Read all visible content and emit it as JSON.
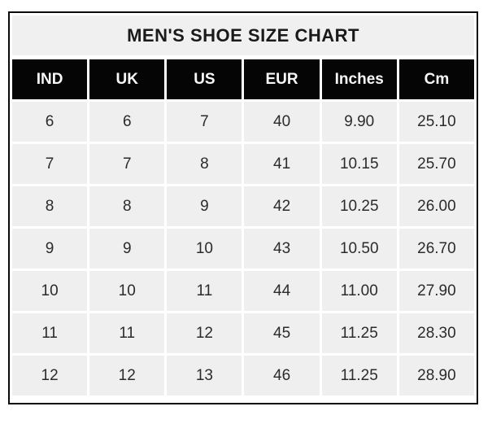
{
  "title": "MEN'S SHOE SIZE CHART",
  "table": {
    "columns": [
      "IND",
      "UK",
      "US",
      "EUR",
      "Inches",
      "Cm"
    ],
    "rows": [
      [
        "6",
        "6",
        "7",
        "40",
        "9.90",
        "25.10"
      ],
      [
        "7",
        "7",
        "8",
        "41",
        "10.15",
        "25.70"
      ],
      [
        "8",
        "8",
        "9",
        "42",
        "10.25",
        "26.00"
      ],
      [
        "9",
        "9",
        "10",
        "43",
        "10.50",
        "26.70"
      ],
      [
        "10",
        "10",
        "11",
        "44",
        "11.00",
        "27.90"
      ],
      [
        "11",
        "11",
        "12",
        "45",
        "11.25",
        "28.30"
      ],
      [
        "12",
        "12",
        "13",
        "46",
        "11.25",
        "28.90"
      ]
    ]
  },
  "colors": {
    "frame_border": "#0a0a0a",
    "title_bg": "#f0f0f0",
    "title_text": "#1a1a1a",
    "header_bg": "#050505",
    "header_text": "#f7f7f7",
    "cell_bg": "#efefef",
    "cell_text": "#2b2b2b",
    "grid_gap": "#ffffff"
  },
  "chart_data": {
    "type": "table",
    "title": "MEN'S SHOE SIZE CHART",
    "columns": [
      "IND",
      "UK",
      "US",
      "EUR",
      "Inches",
      "Cm"
    ],
    "rows": [
      [
        6,
        6,
        7,
        40,
        9.9,
        25.1
      ],
      [
        7,
        7,
        8,
        41,
        10.15,
        25.7
      ],
      [
        8,
        8,
        9,
        42,
        10.25,
        26.0
      ],
      [
        9,
        9,
        10,
        43,
        10.5,
        26.7
      ],
      [
        10,
        10,
        11,
        44,
        11.0,
        27.9
      ],
      [
        11,
        11,
        12,
        45,
        11.25,
        28.3
      ],
      [
        12,
        12,
        13,
        46,
        11.25,
        28.9
      ]
    ]
  }
}
